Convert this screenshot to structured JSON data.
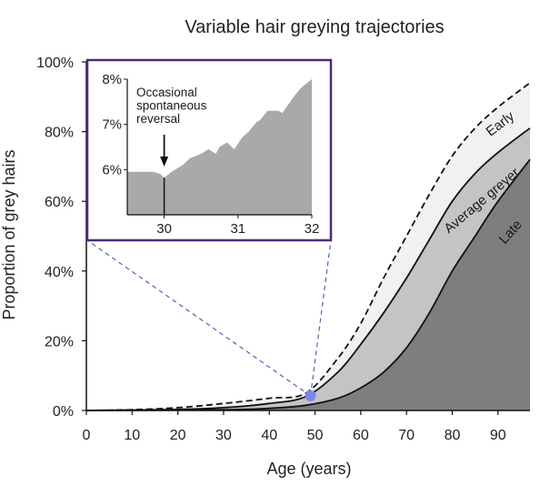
{
  "chart_data": {
    "type": "area",
    "title": "Variable hair greying trajectories",
    "xlabel": "Age (years)",
    "ylabel": "Proportion of grey hairs",
    "xlim": [
      0,
      97
    ],
    "ylim": [
      0,
      100
    ],
    "x_ticks": [
      0,
      10,
      20,
      30,
      40,
      50,
      60,
      70,
      80,
      90
    ],
    "y_ticks": [
      "0%",
      "20%",
      "40%",
      "60%",
      "80%",
      "100%"
    ],
    "y_tick_values": [
      0,
      20,
      40,
      60,
      80,
      100
    ],
    "grid": false,
    "series": [
      {
        "name": "Early",
        "style": "dashed",
        "fill": "#f1f1f1",
        "x": [
          0,
          10,
          20,
          30,
          40,
          48,
          55,
          60,
          65,
          70,
          75,
          80,
          85,
          90,
          97
        ],
        "y": [
          0,
          0.2,
          0.8,
          2,
          3.5,
          5,
          15,
          25,
          38,
          50,
          62,
          73,
          81,
          87,
          94
        ]
      },
      {
        "name": "Average greyer",
        "style": "solid",
        "fill": "#c4c4c4",
        "x": [
          0,
          20,
          30,
          40,
          48,
          55,
          60,
          65,
          70,
          75,
          80,
          85,
          90,
          97
        ],
        "y": [
          0,
          0.3,
          0.8,
          2,
          4,
          11,
          19,
          28,
          38,
          49,
          60,
          68,
          74,
          81
        ]
      },
      {
        "name": "Late",
        "style": "solid",
        "fill": "#7e7e7e",
        "x": [
          0,
          30,
          40,
          48,
          55,
          60,
          65,
          70,
          75,
          80,
          85,
          90,
          97
        ],
        "y": [
          0,
          0.2,
          0.6,
          1.5,
          3.5,
          6.5,
          11,
          18,
          28,
          40,
          50,
          60,
          72
        ]
      }
    ],
    "highlight_point": {
      "x": 49,
      "y": 4.2,
      "color": "#7b86e8"
    },
    "inset": {
      "x_ticks": [
        30,
        31,
        32
      ],
      "y_ticks": [
        "6%",
        "7%",
        "8%"
      ],
      "y_tick_values": [
        6,
        7,
        8
      ],
      "xlim": [
        29.5,
        32
      ],
      "ylim": [
        5.0,
        8.0
      ],
      "border_color": "#4b2a78",
      "fill": "#a9a9a9",
      "x": [
        29.5,
        29.85,
        29.95,
        30.0,
        30.1,
        30.25,
        30.35,
        30.5,
        30.6,
        30.7,
        30.75,
        30.85,
        30.95,
        31.05,
        31.15,
        31.25,
        31.3,
        31.4,
        31.55,
        31.6,
        31.75,
        31.85,
        32.0
      ],
      "y": [
        5.95,
        5.95,
        5.9,
        5.82,
        5.95,
        6.1,
        6.25,
        6.35,
        6.45,
        6.35,
        6.5,
        6.6,
        6.45,
        6.7,
        6.85,
        7.05,
        7.1,
        7.3,
        7.3,
        7.25,
        7.6,
        7.8,
        8.05
      ],
      "annotation": [
        "Occasional",
        "spontaneous",
        "reversal"
      ],
      "annotation_x": 30.0
    }
  }
}
